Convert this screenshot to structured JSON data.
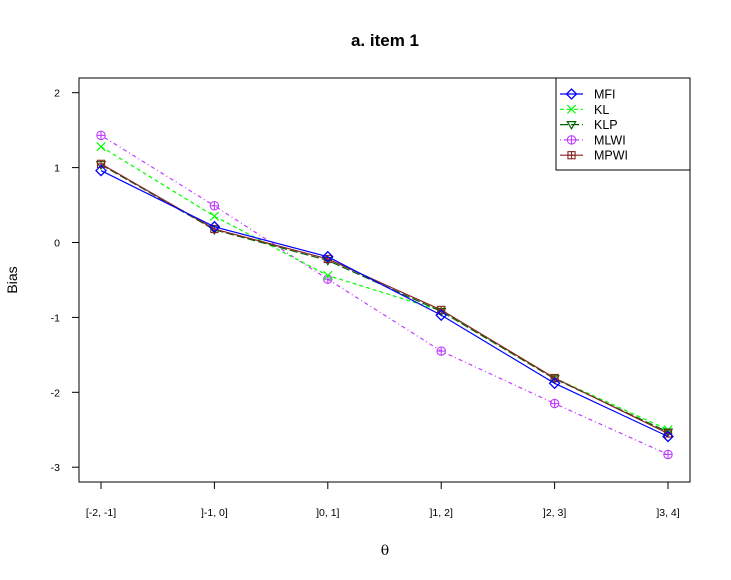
{
  "chart_data": {
    "type": "line",
    "title": "a. item 1",
    "xlabel": "θ",
    "ylabel": "Bias",
    "categories": [
      "[-2, -1]",
      "]-1, 0]",
      "]0, 1]",
      "]1, 2]",
      "]2, 3]",
      "]3, 4]"
    ],
    "ylim": [
      -3.2,
      2.2
    ],
    "yticks": [
      -3,
      -2,
      -1,
      0,
      1,
      2
    ],
    "grid": false,
    "legend_position": "top-right",
    "series": [
      {
        "name": "MFI",
        "values": [
          0.96,
          0.21,
          -0.19,
          -0.97,
          -1.88,
          -2.59
        ],
        "color": "#0000ff",
        "marker": "diamond",
        "dash": "solid"
      },
      {
        "name": "KL",
        "values": [
          1.28,
          0.35,
          -0.44,
          -0.91,
          -1.81,
          -2.5
        ],
        "color": "#00ff00",
        "marker": "x",
        "dash": "dashed"
      },
      {
        "name": "KLP",
        "values": [
          1.04,
          0.17,
          -0.24,
          -0.92,
          -1.82,
          -2.53
        ],
        "color": "#006400",
        "marker": "triangle",
        "dash": "longdash"
      },
      {
        "name": "MLWI",
        "values": [
          1.43,
          0.49,
          -0.49,
          -1.45,
          -2.15,
          -2.83
        ],
        "color": "#bf3fff",
        "marker": "circleplus",
        "dash": "dotdash"
      },
      {
        "name": "MPWI",
        "values": [
          1.05,
          0.18,
          -0.22,
          -0.9,
          -1.81,
          -2.55
        ],
        "color": "#8b2323",
        "marker": "squareplus",
        "dash": "solid"
      }
    ]
  }
}
